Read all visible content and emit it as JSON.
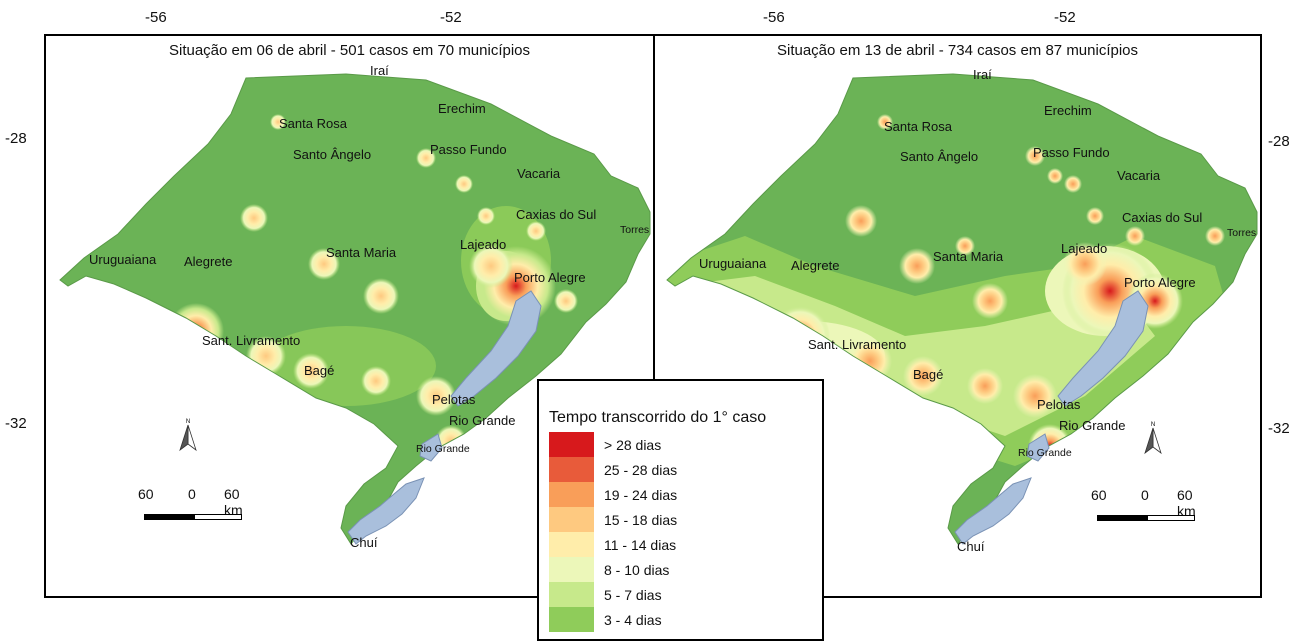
{
  "top_ticks": [
    "-56",
    "-52",
    "-56",
    "-52"
  ],
  "side_ticks": [
    "-28",
    "-32",
    "-28",
    "-32"
  ],
  "panels": [
    {
      "title": "Situação em 06 de abril - 501 casos em 70 municípios",
      "cities": [
        "Iraí",
        "Erechim",
        "Santa Rosa",
        "Santo Ângelo",
        "Passo Fundo",
        "Vacaria",
        "Caxias do Sul",
        "Torres",
        "Lajeado",
        "Santa Maria",
        "Uruguaiana",
        "Alegrete",
        "Porto Alegre",
        "Sant. Livramento",
        "Bagé",
        "Pelotas",
        "Rio Grande",
        "Rio Grande",
        "Chuí"
      ],
      "scale": {
        "left": "60",
        "mid": "0",
        "right": "60 km"
      },
      "north_label": "N"
    },
    {
      "title": "Situação em 13 de abril - 734 casos em 87 municípios",
      "cities": [
        "Iraí",
        "Erechim",
        "Santa Rosa",
        "Santo Ângelo",
        "Passo Fundo",
        "Vacaria",
        "Caxias do Sul",
        "Torres",
        "Lajeado",
        "Santa Maria",
        "Uruguaiana",
        "Alegrete",
        "Porto Alegre",
        "Sant. Livramento",
        "Bagé",
        "Pelotas",
        "Rio Grande",
        "Rio Grande",
        "Chuí"
      ],
      "scale": {
        "left": "60",
        "mid": "0",
        "right": "60 km"
      },
      "north_label": "N"
    }
  ],
  "legend": {
    "title": "Tempo transcorrido do 1° caso",
    "items": [
      {
        "label": "> 28 dias",
        "color": "#d7191c"
      },
      {
        "label": "25 - 28 dias",
        "color": "#e85b3a"
      },
      {
        "label": "19 - 24 dias",
        "color": "#f99e59"
      },
      {
        "label": "15 - 18 dias",
        "color": "#fec980"
      },
      {
        "label": "11 - 14 dias",
        "color": "#ffedaa"
      },
      {
        "label": "8 - 10 dias",
        "color": "#ecf7b9"
      },
      {
        "label": "5 - 7 dias",
        "color": "#c7e98b"
      },
      {
        "label": "3 - 4 dias",
        "color": "#8fcc5a"
      }
    ]
  },
  "colors": {
    "state_fill": "#6bb356",
    "lagoon": "#a9bfdc",
    "border": "#000000"
  }
}
